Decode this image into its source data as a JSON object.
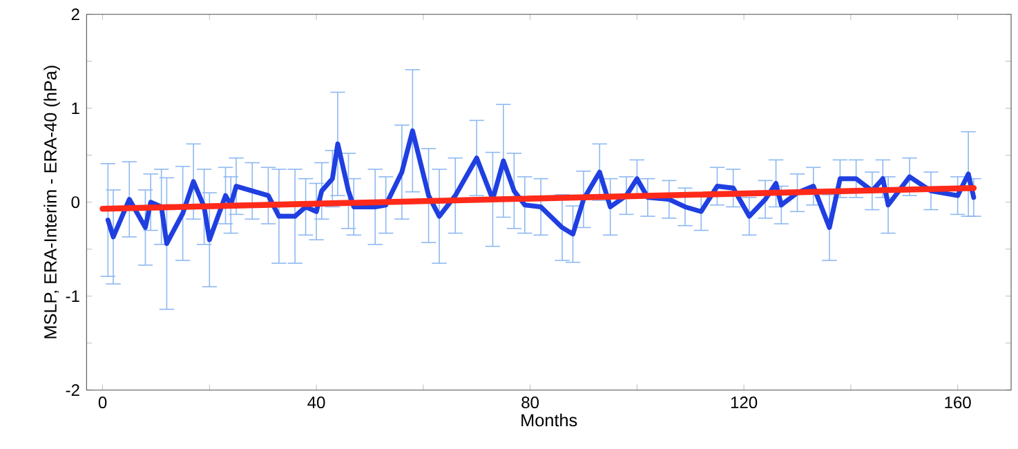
{
  "chart_data": {
    "type": "line",
    "xlabel": "Months",
    "ylabel": "MSLP, ERA-Interim - ERA-40 (hPa)",
    "xlim": [
      -3,
      170
    ],
    "ylim": [
      -2,
      2
    ],
    "xticks": [
      0,
      {
        "value": 20,
        "label": null
      },
      40,
      {
        "value": 60,
        "label": null
      },
      80,
      {
        "value": 100,
        "label": null
      },
      120,
      {
        "value": 140,
        "label": null
      },
      160
    ],
    "yticks": [
      -2,
      {
        "value": -1.5,
        "label": null
      },
      -1,
      {
        "value": -0.5,
        "label": null
      },
      0,
      {
        "value": 0.5,
        "label": null
      },
      1,
      {
        "value": 1.5,
        "label": null
      },
      2
    ],
    "grid": false,
    "marker": "none",
    "line_style": "solid",
    "series": [
      {
        "color": "#1f3fe0",
        "x": [
          1,
          2,
          5,
          8,
          9,
          11,
          12,
          15,
          17,
          19,
          20,
          23,
          24,
          25,
          28,
          31,
          33,
          36,
          38,
          40,
          41,
          43,
          44,
          46,
          47,
          51,
          53,
          56,
          58,
          61,
          63,
          66,
          70,
          73,
          75,
          77,
          79,
          82,
          86,
          88,
          90,
          93,
          95,
          98,
          100,
          102,
          106,
          109,
          112,
          115,
          118,
          121,
          124,
          126,
          127,
          130,
          133,
          136,
          138,
          141,
          144,
          146,
          147,
          151,
          155,
          160,
          162,
          163
        ],
        "values": [
          -0.19,
          -0.37,
          0.03,
          -0.27,
          0,
          -0.05,
          -0.44,
          -0.12,
          0.22,
          -0.05,
          -0.4,
          0.07,
          -0.03,
          0.17,
          0.12,
          0.07,
          -0.15,
          -0.15,
          -0.05,
          -0.1,
          0.12,
          0.25,
          0.62,
          0.12,
          -0.05,
          -0.05,
          -0.03,
          0.32,
          0.76,
          0.07,
          -0.15,
          0.07,
          0.47,
          0.03,
          0.44,
          0.12,
          -0.03,
          -0.05,
          -0.27,
          -0.34,
          0.03,
          0.32,
          -0.05,
          0.07,
          0.25,
          0.05,
          0.03,
          -0.05,
          -0.1,
          0.17,
          0.15,
          -0.15,
          0.03,
          0.2,
          -0.03,
          0.1,
          0.17,
          -0.27,
          0.25,
          0.25,
          0.12,
          0.25,
          -0.03,
          0.27,
          0.12,
          0.07,
          0.3,
          0.05
        ],
        "errors": [
          0.6,
          0.5,
          0.4,
          0.4,
          0.3,
          0.4,
          0.7,
          0.5,
          0.4,
          0.4,
          0.5,
          0.3,
          0.3,
          0.3,
          0.3,
          0.3,
          0.5,
          0.5,
          0.3,
          0.3,
          0.3,
          0.3,
          0.55,
          0.4,
          0.3,
          0.4,
          0.3,
          0.5,
          0.65,
          0.5,
          0.5,
          0.4,
          0.4,
          0.5,
          0.6,
          0.4,
          0.3,
          0.3,
          0.35,
          0.3,
          0.3,
          0.3,
          0.3,
          0.2,
          0.2,
          0.2,
          0.2,
          0.2,
          0.2,
          0.2,
          0.2,
          0.2,
          0.2,
          0.25,
          0.2,
          0.2,
          0.2,
          0.35,
          0.2,
          0.2,
          0.2,
          0.2,
          0.3,
          0.2,
          0.2,
          0.2,
          0.45,
          0.2
        ]
      },
      {
        "color": "#ff2a1a",
        "x": [
          0,
          163
        ],
        "values": [
          -0.07,
          0.15
        ]
      }
    ]
  }
}
